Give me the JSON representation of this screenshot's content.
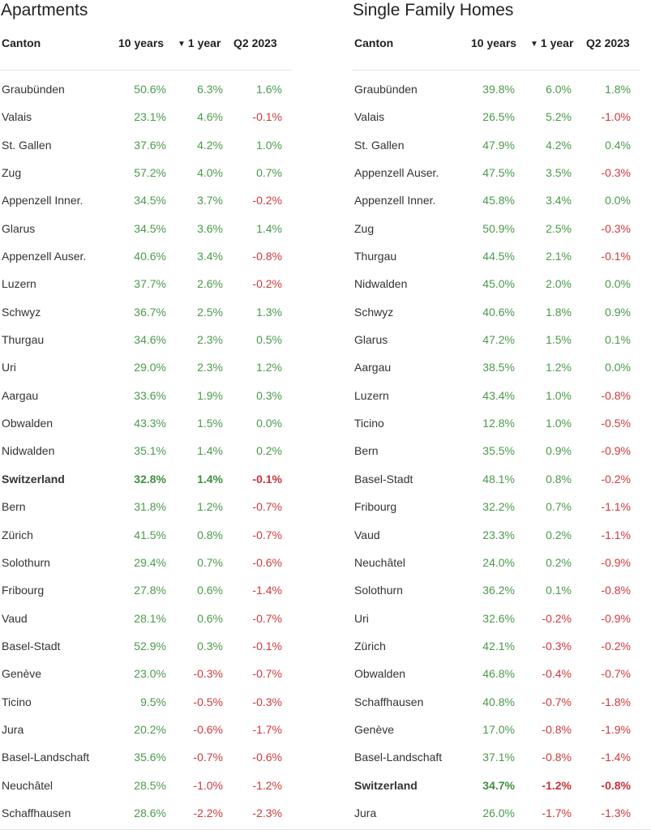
{
  "colors": {
    "positive": "#4a9a4a",
    "negative": "#d0393c",
    "header_line": "#e3e3e3"
  },
  "apartments": {
    "title": "Apartments",
    "headers": {
      "canton": "Canton",
      "ten_years": "10 years",
      "one_year": "1 year",
      "sort_icon": "▼",
      "q2": "Q2 2023"
    },
    "rows": [
      {
        "canton": "Graubünden",
        "ten": "50.6%",
        "one": "6.3%",
        "q2": "1.6%"
      },
      {
        "canton": "Valais",
        "ten": "23.1%",
        "one": "4.6%",
        "q2": "-0.1%"
      },
      {
        "canton": "St. Gallen",
        "ten": "37.6%",
        "one": "4.2%",
        "q2": "1.0%"
      },
      {
        "canton": "Zug",
        "ten": "57.2%",
        "one": "4.0%",
        "q2": "0.7%"
      },
      {
        "canton": "Appenzell Inner.",
        "ten": "34.5%",
        "one": "3.7%",
        "q2": "-0.2%"
      },
      {
        "canton": "Glarus",
        "ten": "34.5%",
        "one": "3.6%",
        "q2": "1.4%"
      },
      {
        "canton": "Appenzell Auser.",
        "ten": "40.6%",
        "one": "3.4%",
        "q2": "-0.8%"
      },
      {
        "canton": "Luzern",
        "ten": "37.7%",
        "one": "2.6%",
        "q2": "-0.2%"
      },
      {
        "canton": "Schwyz",
        "ten": "36.7%",
        "one": "2.5%",
        "q2": "1.3%"
      },
      {
        "canton": "Thurgau",
        "ten": "34.6%",
        "one": "2.3%",
        "q2": "0.5%"
      },
      {
        "canton": "Uri",
        "ten": "29.0%",
        "one": "2.3%",
        "q2": "1.2%"
      },
      {
        "canton": "Aargau",
        "ten": "33.6%",
        "one": "1.9%",
        "q2": "0.3%"
      },
      {
        "canton": "Obwalden",
        "ten": "43.3%",
        "one": "1.5%",
        "q2": "0.0%"
      },
      {
        "canton": "Nidwalden",
        "ten": "35.1%",
        "one": "1.4%",
        "q2": "0.2%"
      },
      {
        "canton": "Switzerland",
        "ten": "32.8%",
        "one": "1.4%",
        "q2": "-0.1%",
        "bold": true
      },
      {
        "canton": "Bern",
        "ten": "31.8%",
        "one": "1.2%",
        "q2": "-0.7%"
      },
      {
        "canton": "Zürich",
        "ten": "41.5%",
        "one": "0.8%",
        "q2": "-0.7%"
      },
      {
        "canton": "Solothurn",
        "ten": "29.4%",
        "one": "0.7%",
        "q2": "-0.6%"
      },
      {
        "canton": "Fribourg",
        "ten": "27.8%",
        "one": "0.6%",
        "q2": "-1.4%"
      },
      {
        "canton": "Vaud",
        "ten": "28.1%",
        "one": "0.6%",
        "q2": "-0.7%"
      },
      {
        "canton": "Basel-Stadt",
        "ten": "52.9%",
        "one": "0.3%",
        "q2": "-0.1%"
      },
      {
        "canton": "Genève",
        "ten": "23.0%",
        "one": "-0.3%",
        "q2": "-0.7%"
      },
      {
        "canton": "Ticino",
        "ten": "9.5%",
        "one": "-0.5%",
        "q2": "-0.3%"
      },
      {
        "canton": "Jura",
        "ten": "20.2%",
        "one": "-0.6%",
        "q2": "-1.7%"
      },
      {
        "canton": "Basel-Landschaft",
        "ten": "35.6%",
        "one": "-0.7%",
        "q2": "-0.6%"
      },
      {
        "canton": "Neuchâtel",
        "ten": "28.5%",
        "one": "-1.0%",
        "q2": "-1.2%"
      },
      {
        "canton": "Schaffhausen",
        "ten": "28.6%",
        "one": "-2.2%",
        "q2": "-2.3%"
      }
    ]
  },
  "homes": {
    "title": "Single Family Homes",
    "headers": {
      "canton": "Canton",
      "ten_years": "10 years",
      "one_year": "1 year",
      "sort_icon": "▼",
      "q2": "Q2 2023"
    },
    "rows": [
      {
        "canton": "Graubünden",
        "ten": "39.8%",
        "one": "6.0%",
        "q2": "1.8%"
      },
      {
        "canton": "Valais",
        "ten": "26.5%",
        "one": "5.2%",
        "q2": "-1.0%"
      },
      {
        "canton": "St. Gallen",
        "ten": "47.9%",
        "one": "4.2%",
        "q2": "0.4%"
      },
      {
        "canton": "Appenzell Auser.",
        "ten": "47.5%",
        "one": "3.5%",
        "q2": "-0.3%"
      },
      {
        "canton": "Appenzell Inner.",
        "ten": "45.8%",
        "one": "3.4%",
        "q2": "0.0%"
      },
      {
        "canton": "Zug",
        "ten": "50.9%",
        "one": "2.5%",
        "q2": "-0.3%"
      },
      {
        "canton": "Thurgau",
        "ten": "44.5%",
        "one": "2.1%",
        "q2": "-0.1%"
      },
      {
        "canton": "Nidwalden",
        "ten": "45.0%",
        "one": "2.0%",
        "q2": "0.0%"
      },
      {
        "canton": "Schwyz",
        "ten": "40.6%",
        "one": "1.8%",
        "q2": "0.9%"
      },
      {
        "canton": "Glarus",
        "ten": "47.2%",
        "one": "1.5%",
        "q2": "0.1%"
      },
      {
        "canton": "Aargau",
        "ten": "38.5%",
        "one": "1.2%",
        "q2": "0.0%"
      },
      {
        "canton": "Luzern",
        "ten": "43.4%",
        "one": "1.0%",
        "q2": "-0.8%"
      },
      {
        "canton": "Ticino",
        "ten": "12.8%",
        "one": "1.0%",
        "q2": "-0.5%"
      },
      {
        "canton": "Bern",
        "ten": "35.5%",
        "one": "0.9%",
        "q2": "-0.9%"
      },
      {
        "canton": "Basel-Stadt",
        "ten": "48.1%",
        "one": "0.8%",
        "q2": "-0.2%"
      },
      {
        "canton": "Fribourg",
        "ten": "32.2%",
        "one": "0.7%",
        "q2": "-1.1%"
      },
      {
        "canton": "Vaud",
        "ten": "23.3%",
        "one": "0.2%",
        "q2": "-1.1%"
      },
      {
        "canton": "Neuchâtel",
        "ten": "24.0%",
        "one": "0.2%",
        "q2": "-0.9%"
      },
      {
        "canton": "Solothurn",
        "ten": "36.2%",
        "one": "0.1%",
        "q2": "-0.8%"
      },
      {
        "canton": "Uri",
        "ten": "32.6%",
        "one": "-0.2%",
        "q2": "-0.9%"
      },
      {
        "canton": "Zürich",
        "ten": "42.1%",
        "one": "-0.3%",
        "q2": "-0.2%"
      },
      {
        "canton": "Obwalden",
        "ten": "46.8%",
        "one": "-0.4%",
        "q2": "-0.7%"
      },
      {
        "canton": "Schaffhausen",
        "ten": "40.8%",
        "one": "-0.7%",
        "q2": "-1.8%"
      },
      {
        "canton": "Genève",
        "ten": "17.0%",
        "one": "-0.8%",
        "q2": "-1.9%"
      },
      {
        "canton": "Basel-Landschaft",
        "ten": "37.1%",
        "one": "-0.8%",
        "q2": "-1.4%"
      },
      {
        "canton": "Switzerland",
        "ten": "34.7%",
        "one": "-1.2%",
        "q2": "-0.8%",
        "bold": true
      },
      {
        "canton": "Jura",
        "ten": "26.0%",
        "one": "-1.7%",
        "q2": "-1.3%"
      }
    ]
  }
}
